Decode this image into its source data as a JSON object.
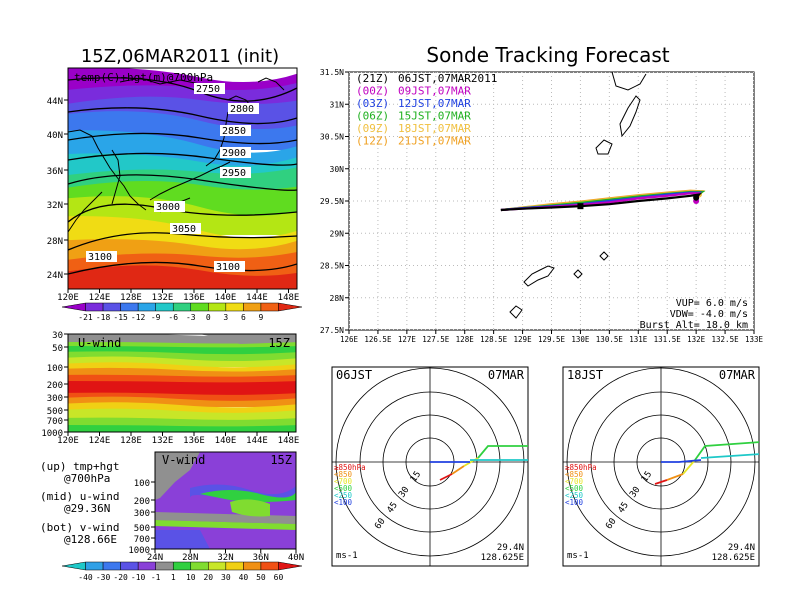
{
  "left_title": "15Z,06MAR2011 (init)",
  "right_title": "Sonde Tracking Forecast",
  "map_panel": {
    "label": "temp(C)+hgt(m)@700hPa",
    "lat_ticks": [
      "44N",
      "40N",
      "36N",
      "32N",
      "28N",
      "24N"
    ],
    "lon_ticks": [
      "120E",
      "124E",
      "128E",
      "132E",
      "136E",
      "140E",
      "144E",
      "148E"
    ],
    "contour_labels": [
      "2750",
      "2800",
      "2850",
      "2900",
      "2950",
      "3000",
      "3050",
      "3100",
      "3100"
    ],
    "colorbar_ticks": [
      "-21",
      "-18",
      "-15",
      "-12",
      "-9",
      "-6",
      "-3",
      "0",
      "3",
      "6",
      "9"
    ],
    "colorbar_colors": [
      "#9a00c8",
      "#7a2cdc",
      "#5a52e6",
      "#3c78ee",
      "#2aa5e8",
      "#22c8c8",
      "#30d080",
      "#60dc20",
      "#b4e614",
      "#f0dc14",
      "#f0a014",
      "#f06014",
      "#e02814"
    ]
  },
  "uwind_panel": {
    "label": "U-wind",
    "time": "15Z",
    "p_ticks": [
      "30",
      "50",
      "100",
      "200",
      "300",
      "500",
      "700",
      "1000"
    ],
    "lon_ticks": [
      "120E",
      "124E",
      "128E",
      "132E",
      "136E",
      "140E",
      "144E",
      "148E"
    ]
  },
  "vwind_panel": {
    "label": "V-wind",
    "time": "15Z",
    "p_ticks": [
      "100",
      "200",
      "300",
      "500",
      "700",
      "1000"
    ],
    "lat_ticks": [
      "24N",
      "28N",
      "32N",
      "36N",
      "40N"
    ]
  },
  "left_notes": [
    "(up) tmp+hgt",
    "@700hPa",
    "(mid) u-wind",
    "@29.36N",
    "(bot) v-wind",
    "@128.66E"
  ],
  "wind_colorbar": {
    "ticks": [
      "-40",
      "-30",
      "-20",
      "-10",
      "-1",
      "1",
      "10",
      "20",
      "30",
      "40",
      "50",
      "60"
    ],
    "colors": [
      "#1ec8c8",
      "#30a0e6",
      "#3c78ee",
      "#5a52e6",
      "#8a40d8",
      "#909090",
      "#30d040",
      "#80dc30",
      "#c8e628",
      "#f0d014",
      "#f09014",
      "#f05014",
      "#e01414"
    ]
  },
  "track_panel": {
    "lat_ticks": [
      "31.5N",
      "31N",
      "30.5N",
      "30N",
      "29.5N",
      "29N",
      "28.5N",
      "28N",
      "27.5N"
    ],
    "lon_ticks": [
      "126E",
      "126.5E",
      "127E",
      "127.5E",
      "128E",
      "128.5E",
      "129E",
      "129.5E",
      "130E",
      "130.5E",
      "131E",
      "131.5E",
      "132E",
      "132.5E",
      "133E"
    ],
    "legend": [
      {
        "run": "(21Z)",
        "time": "06JST,07MAR2011",
        "color": "#000000"
      },
      {
        "run": "(00Z)",
        "time": "09JST,07MAR",
        "color": "#c000c0"
      },
      {
        "run": "(03Z)",
        "time": "12JST,07MAR",
        "color": "#2040e0"
      },
      {
        "run": "(06Z)",
        "time": "15JST,07MAR",
        "color": "#20b020"
      },
      {
        "run": "(09Z)",
        "time": "18JST,07MAR",
        "color": "#f0c040"
      },
      {
        "run": "(12Z)",
        "time": "21JST,07MAR",
        "color": "#f0a020"
      }
    ],
    "info": [
      "VUP=  6.0  m/s",
      "VDW= -4.0  m/s",
      "Burst Alt= 18.0  km"
    ]
  },
  "hodo_left": {
    "time_label": "06JST",
    "date_label": "07MAR",
    "ring_labels": [
      "15",
      "30",
      "45",
      "60"
    ],
    "units": "ms-1",
    "loc_lat": "29.4N",
    "loc_lon": "128.625E",
    "levels": [
      {
        "label": "≥850hPa",
        "color": "#e01414"
      },
      {
        "label": "<850",
        "color": "#f09014"
      },
      {
        "label": "<700",
        "color": "#e6e628"
      },
      {
        "label": "<500",
        "color": "#30d040"
      },
      {
        "label": "<250",
        "color": "#1ec8c8"
      },
      {
        "label": "<100",
        "color": "#2040e0"
      }
    ]
  },
  "hodo_right": {
    "time_label": "18JST",
    "date_label": "07MAR",
    "ring_labels": [
      "15",
      "30",
      "45",
      "60"
    ],
    "units": "ms-1",
    "loc_lat": "29.4N",
    "loc_lon": "128.625E",
    "levels": [
      {
        "label": "≥850hPa",
        "color": "#e01414"
      },
      {
        "label": "<850",
        "color": "#f09014"
      },
      {
        "label": "<700",
        "color": "#e6e628"
      },
      {
        "label": "<500",
        "color": "#30d040"
      },
      {
        "label": "<250",
        "color": "#1ec8c8"
      },
      {
        "label": "<100",
        "color": "#2040e0"
      }
    ]
  },
  "chart_data": [
    {
      "type": "heatmap",
      "title": "15Z,06MAR2011 (init)",
      "subtitle": "temp(C)+hgt(m)@700hPa",
      "xlim": [
        120,
        149
      ],
      "ylim": [
        22,
        47
      ],
      "xticks": [
        "120E",
        "124E",
        "128E",
        "132E",
        "136E",
        "140E",
        "144E",
        "148E"
      ],
      "yticks": [
        "24N",
        "28N",
        "32N",
        "36N",
        "40N",
        "44N"
      ],
      "contour_levels": [
        2750,
        2800,
        2850,
        2900,
        2950,
        3000,
        3050,
        3100
      ],
      "color_scale_ticks": [
        -21,
        -18,
        -15,
        -12,
        -9,
        -6,
        -3,
        0,
        3,
        6,
        9
      ]
    },
    {
      "type": "heatmap",
      "title": "U-wind 15Z",
      "xlim": [
        120,
        149
      ],
      "yticks": [
        30,
        50,
        100,
        200,
        300,
        500,
        700,
        1000
      ]
    },
    {
      "type": "heatmap",
      "title": "V-wind 15Z",
      "xlim": [
        22,
        40
      ],
      "xticks": [
        "24N",
        "28N",
        "32N",
        "36N",
        "40N"
      ],
      "yticks": [
        100,
        200,
        300,
        500,
        700,
        1000
      ],
      "color_scale_ticks": [
        -40,
        -30,
        -20,
        -10,
        -1,
        1,
        10,
        20,
        30,
        40,
        50,
        60
      ]
    },
    {
      "type": "line",
      "title": "Sonde Tracking Forecast",
      "xlim": [
        126,
        133
      ],
      "ylim": [
        27.5,
        31.5
      ],
      "series": [
        {
          "name": "(21Z) 06JST,07MAR2011",
          "x": [
            128.625,
            129.0,
            129.5,
            130.0,
            130.5,
            131.0,
            131.5,
            131.9,
            132.05,
            132.0
          ],
          "y": [
            29.36,
            29.38,
            29.4,
            29.42,
            29.45,
            29.5,
            29.54,
            29.58,
            29.6,
            29.55
          ]
        },
        {
          "name": "(00Z) 09JST,07MAR",
          "x": [
            128.625,
            129.0,
            129.5,
            130.0,
            130.5,
            131.0,
            131.5,
            131.9,
            132.05,
            132.0
          ],
          "y": [
            29.36,
            29.38,
            29.41,
            29.44,
            29.48,
            29.54,
            29.58,
            29.62,
            29.62,
            29.5
          ]
        },
        {
          "name": "(03Z) 12JST,07MAR",
          "x": [
            128.625,
            129.0,
            129.5,
            130.0,
            130.5,
            131.0,
            131.5,
            131.9,
            132.05,
            132.0
          ],
          "y": [
            29.36,
            29.39,
            29.42,
            29.45,
            29.5,
            29.55,
            29.6,
            29.63,
            29.63,
            29.6
          ]
        },
        {
          "name": "(06Z) 15JST,07MAR",
          "x": [
            128.625,
            129.0,
            129.5,
            130.0,
            130.5,
            131.0,
            131.5,
            131.9,
            132.1,
            132.0
          ],
          "y": [
            29.36,
            29.39,
            29.43,
            29.47,
            29.52,
            29.57,
            29.61,
            29.64,
            29.64,
            29.58
          ]
        },
        {
          "name": "(09Z) 18JST,07MAR",
          "x": [
            128.625,
            129.0,
            129.5,
            130.0,
            130.5,
            131.0,
            131.5,
            131.9,
            132.1,
            132.05
          ],
          "y": [
            29.36,
            29.4,
            29.44,
            29.48,
            29.53,
            29.58,
            29.62,
            29.65,
            29.64,
            29.6
          ]
        },
        {
          "name": "(12Z) 21JST,07MAR",
          "x": [
            128.625,
            129.0,
            129.5,
            130.0,
            130.5,
            131.0,
            131.5,
            131.9,
            132.1,
            132.05
          ],
          "y": [
            29.36,
            29.4,
            29.45,
            29.49,
            29.54,
            29.59,
            29.63,
            29.66,
            29.65,
            29.62
          ]
        }
      ]
    }
  ]
}
